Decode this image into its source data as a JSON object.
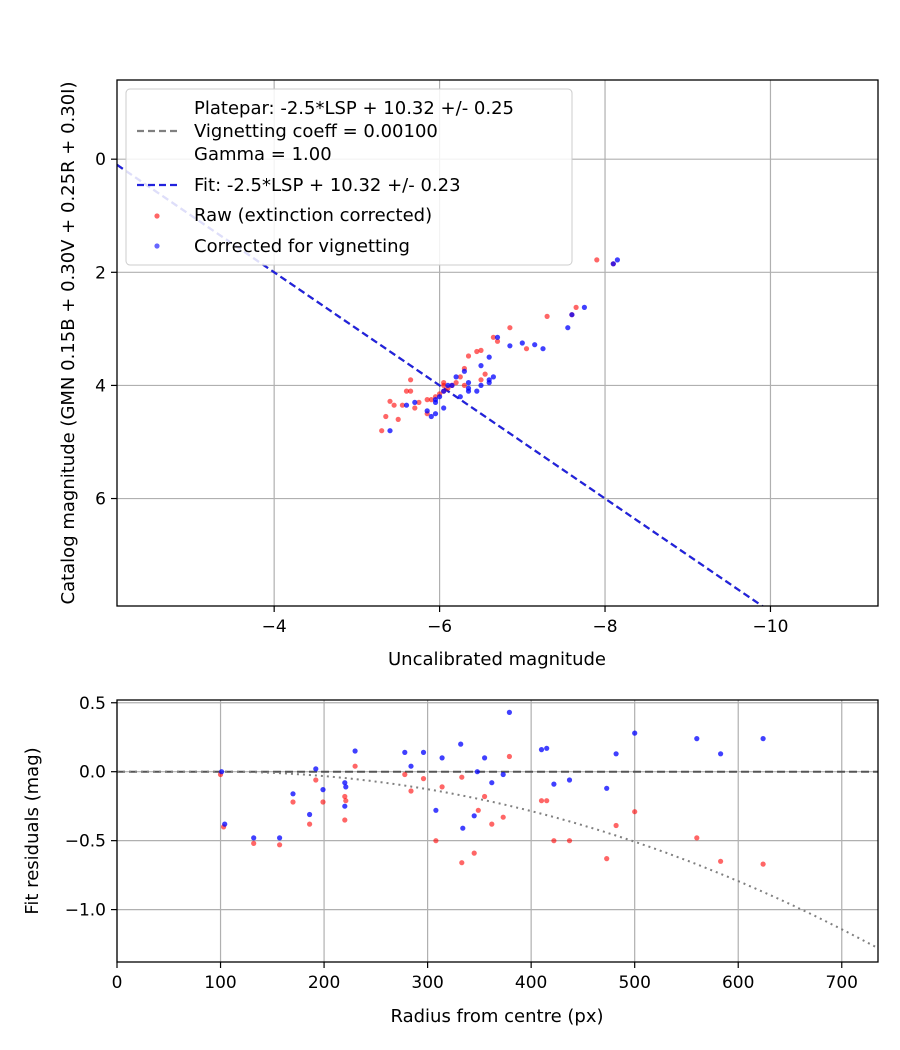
{
  "chart_data": [
    {
      "type": "scatter",
      "xlabel": "Uncalibrated magnitude",
      "ylabel": "Catalog magnitude (GMN 0.15B + 0.30V + 0.25R + 0.30I)",
      "xlim": [
        -2.1,
        -11.3
      ],
      "ylim": [
        7.9,
        -1.4
      ],
      "x_ticks": [
        -4,
        -6,
        -8,
        -10
      ],
      "x_tick_labels": [
        "−4",
        "−6",
        "−8",
        "−10"
      ],
      "y_ticks": [
        0,
        2,
        4,
        6
      ],
      "y_tick_labels": [
        "0",
        "2",
        "4",
        "6"
      ],
      "grid": true,
      "legend_position": "top-left",
      "legend": {
        "platepar_line1": "Platepar: -2.5*LSP + 10.32 +/- 0.25",
        "platepar_line2": "Vignetting coeff = 0.00100",
        "platepar_line3": "Gamma = 1.00",
        "fit": "Fit: -2.5*LSP + 10.32 +/- 0.23",
        "raw": "Raw (extinction corrected)",
        "corrected": "Corrected for vignetting"
      },
      "lines": [
        {
          "name": "Platepar",
          "slope": -2.5,
          "intercept": 10.32,
          "style": "dashed",
          "color": "#808080"
        },
        {
          "name": "Fit",
          "slope": -2.5,
          "intercept": 10.32,
          "style": "dashed",
          "color": "#2222dd"
        }
      ],
      "series": [
        {
          "name": "Raw (extinction corrected)",
          "color": "#ff0000",
          "x": [
            -7.9,
            -8.1,
            -7.65,
            -7.6,
            -7.3,
            -7.05,
            -6.85,
            -6.65,
            -6.7,
            -6.5,
            -6.45,
            -6.35,
            -6.3,
            -6.25,
            -6.5,
            -6.2,
            -6.15,
            -6.05,
            -6.1,
            -6.0,
            -5.95,
            -5.9,
            -5.85,
            -5.75,
            -5.7,
            -5.65,
            -5.65,
            -5.6,
            -5.55,
            -5.45,
            -5.4,
            -5.35,
            -5.3,
            -6.3,
            -6.05,
            -5.85,
            -6.55,
            -6.05,
            -5.5
          ],
          "y": [
            1.78,
            1.85,
            2.62,
            2.75,
            2.78,
            3.35,
            2.98,
            3.15,
            3.22,
            3.38,
            3.4,
            3.48,
            3.7,
            3.85,
            3.9,
            3.95,
            4.0,
            4.0,
            4.05,
            4.15,
            4.2,
            4.25,
            4.25,
            4.3,
            4.4,
            3.9,
            4.1,
            4.1,
            4.35,
            4.35,
            4.28,
            4.55,
            4.8,
            4.0,
            3.95,
            4.5,
            3.8,
            4.1,
            4.6
          ]
        },
        {
          "name": "Corrected for vignetting",
          "color": "#0000ff",
          "x": [
            -8.15,
            -8.1,
            -7.75,
            -7.6,
            -7.55,
            -7.25,
            -7.15,
            -7.0,
            -6.85,
            -6.7,
            -6.6,
            -6.65,
            -6.6,
            -6.5,
            -6.45,
            -6.35,
            -6.3,
            -6.2,
            -6.1,
            -6.05,
            -6.0,
            -5.95,
            -5.95,
            -5.9,
            -5.85,
            -5.7,
            -5.6,
            -5.4,
            -6.35,
            -6.25,
            -6.15,
            -6.05,
            -5.95,
            -6.5,
            -6.35,
            -6.6
          ],
          "y": [
            1.78,
            1.85,
            2.62,
            2.75,
            2.98,
            3.35,
            3.28,
            3.25,
            3.3,
            3.15,
            3.5,
            3.85,
            3.9,
            3.65,
            4.1,
            4.05,
            3.75,
            3.85,
            4.0,
            4.1,
            4.2,
            4.3,
            4.5,
            4.55,
            4.45,
            4.3,
            4.35,
            4.8,
            3.95,
            4.2,
            4.0,
            4.4,
            4.25,
            4.0,
            4.1,
            3.95
          ]
        }
      ]
    },
    {
      "type": "scatter",
      "xlabel": "Radius from centre (px)",
      "ylabel": "Fit residuals (mag)",
      "xlim": [
        0,
        735
      ],
      "ylim": [
        -1.38,
        0.52
      ],
      "x_ticks": [
        0,
        100,
        200,
        300,
        400,
        500,
        600,
        700
      ],
      "x_tick_labels": [
        "0",
        "100",
        "200",
        "300",
        "400",
        "500",
        "600",
        "700"
      ],
      "y_ticks": [
        0.5,
        0.0,
        -0.5,
        -1.0
      ],
      "y_tick_labels": [
        "0.5",
        "0.0",
        "−0.5",
        "−1.0"
      ],
      "grid": true,
      "lines": [
        {
          "name": "zero",
          "style": "dashed",
          "color": "#555555",
          "y": 0
        },
        {
          "name": "vignetting model",
          "style": "dotted",
          "color": "#808080",
          "coeff": 0.001,
          "threshold": 100
        }
      ],
      "series": [
        {
          "name": "Raw (extinction corrected)",
          "color": "#ff0000",
          "x": [
            100,
            103,
            132,
            157,
            170,
            186,
            192,
            199,
            220,
            220,
            221,
            230,
            278,
            284,
            296,
            308,
            314,
            333,
            333,
            345,
            349,
            355,
            362,
            373,
            379,
            410,
            415,
            422,
            437,
            473,
            482,
            500,
            560,
            583,
            624
          ],
          "y": [
            -0.02,
            -0.4,
            -0.52,
            -0.53,
            -0.22,
            -0.38,
            -0.06,
            -0.22,
            -0.35,
            -0.18,
            -0.21,
            0.04,
            -0.02,
            -0.14,
            -0.05,
            -0.5,
            -0.11,
            -0.04,
            -0.66,
            -0.59,
            -0.28,
            -0.18,
            -0.38,
            -0.33,
            0.11,
            -0.21,
            -0.21,
            -0.5,
            -0.5,
            -0.63,
            -0.39,
            -0.29,
            -0.48,
            -0.65,
            -0.67
          ]
        },
        {
          "name": "Corrected for vignetting",
          "color": "#0000ff",
          "x": [
            101,
            104,
            132,
            157,
            170,
            186,
            192,
            199,
            220,
            220,
            221,
            230,
            278,
            284,
            296,
            308,
            314,
            332,
            334,
            345,
            348,
            355,
            362,
            373,
            379,
            410,
            415,
            422,
            437,
            473,
            482,
            500,
            560,
            583,
            624
          ],
          "y": [
            0.0,
            -0.38,
            -0.48,
            -0.48,
            -0.16,
            -0.31,
            0.02,
            -0.13,
            -0.25,
            -0.08,
            -0.11,
            0.15,
            0.14,
            0.04,
            0.14,
            -0.28,
            0.1,
            0.2,
            -0.41,
            -0.32,
            0.0,
            0.1,
            -0.08,
            -0.02,
            0.43,
            0.16,
            0.17,
            -0.09,
            -0.06,
            -0.12,
            0.13,
            0.28,
            0.24,
            0.13,
            0.24
          ]
        }
      ]
    }
  ]
}
